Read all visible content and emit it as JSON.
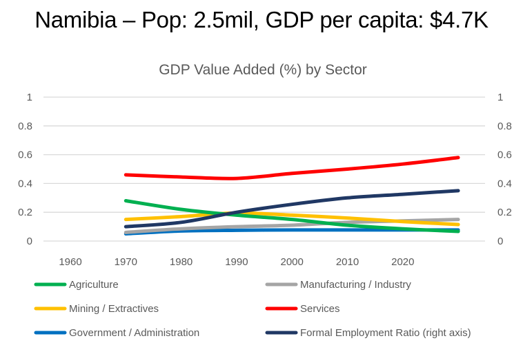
{
  "page": {
    "title": "Namibia – Pop: 2.5mil, GDP per capita:  $4.7K"
  },
  "chart_data": {
    "type": "line",
    "title": "GDP Value Added (%) by Sector",
    "xlabel": "",
    "ylabel": "",
    "y2label": "",
    "categories": [
      "1960",
      "1970",
      "1980",
      "1990",
      "2000",
      "2010",
      "2020",
      ""
    ],
    "x_tick_labels": [
      "1960",
      "1970",
      "1980",
      "1990",
      "2000",
      "2010",
      "2020"
    ],
    "ylim": [
      0,
      1
    ],
    "y2lim": [
      0,
      1
    ],
    "y_ticks": [
      "0",
      "0.2",
      "0.4",
      "0.6",
      "0.8",
      "1"
    ],
    "y2_ticks": [
      "0",
      "0.2",
      "0.4",
      "0.6",
      "0.8",
      "1"
    ],
    "grid": true,
    "legend_position": "bottom",
    "series": [
      {
        "name": "Agriculture",
        "color": "#00B050",
        "axis": "left",
        "values": [
          null,
          0.28,
          0.22,
          0.18,
          0.15,
          0.11,
          0.085,
          0.067
        ]
      },
      {
        "name": "Manufacturing / Industry",
        "color": "#A5A5A5",
        "axis": "left",
        "values": [
          null,
          0.06,
          0.085,
          0.1,
          0.11,
          0.13,
          0.14,
          0.15
        ]
      },
      {
        "name": "Mining / Extractives",
        "color": "#FFC000",
        "axis": "left",
        "values": [
          null,
          0.15,
          0.17,
          0.195,
          0.18,
          0.16,
          0.135,
          0.115
        ]
      },
      {
        "name": "Services",
        "color": "#FF0000",
        "axis": "left",
        "values": [
          null,
          0.46,
          0.445,
          0.435,
          0.47,
          0.5,
          0.535,
          0.58
        ]
      },
      {
        "name": "Government / Administration",
        "color": "#0070C0",
        "axis": "left",
        "values": [
          null,
          0.05,
          0.07,
          0.075,
          0.077,
          0.077,
          0.077,
          0.077
        ]
      },
      {
        "name": "Formal Employment Ratio (right axis)",
        "color": "#203864",
        "axis": "right",
        "values": [
          null,
          0.1,
          0.13,
          0.2,
          0.255,
          0.3,
          0.325,
          0.35
        ]
      }
    ]
  }
}
